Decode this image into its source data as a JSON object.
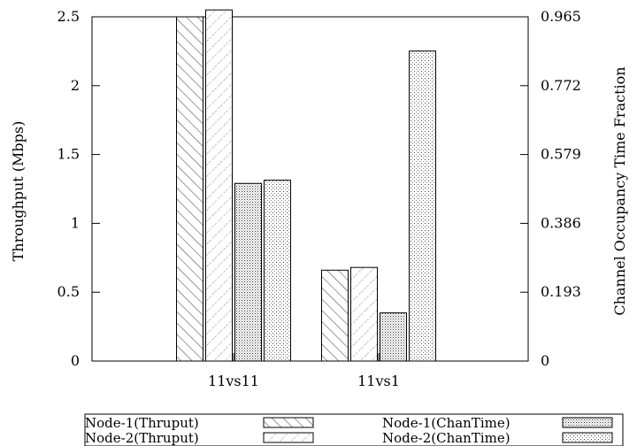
{
  "chart_data": {
    "type": "bar",
    "categories": [
      "11vs11",
      "11vs1"
    ],
    "series": [
      {
        "name": "Node-1(Thruput)",
        "axis": "left",
        "pattern": "hatch-back",
        "values": [
          2.5,
          0.66
        ]
      },
      {
        "name": "Node-2(Thruput)",
        "axis": "left",
        "pattern": "hatch-fwd",
        "values": [
          2.55,
          0.68
        ]
      },
      {
        "name": "Node-1(ChanTime)",
        "axis": "right",
        "pattern": "dots-dense",
        "values": [
          0.498,
          0.135
        ]
      },
      {
        "name": "Node-2(ChanTime)",
        "axis": "right",
        "pattern": "dots-sparse",
        "values": [
          0.507,
          0.869
        ]
      }
    ],
    "ylabel": "Throughput (Mbps)",
    "y2label": "Channel Occupancy Time Fraction",
    "ylim": [
      0,
      2.5
    ],
    "y2lim": [
      0,
      0.965
    ],
    "yticks": [
      "0",
      "0.5",
      "1",
      "1.5",
      "2",
      "2.5"
    ],
    "y2ticks": [
      "0",
      "0.193",
      "0.386",
      "0.579",
      "0.772",
      "0.965"
    ],
    "legend_position": "bottom",
    "grid": false
  }
}
